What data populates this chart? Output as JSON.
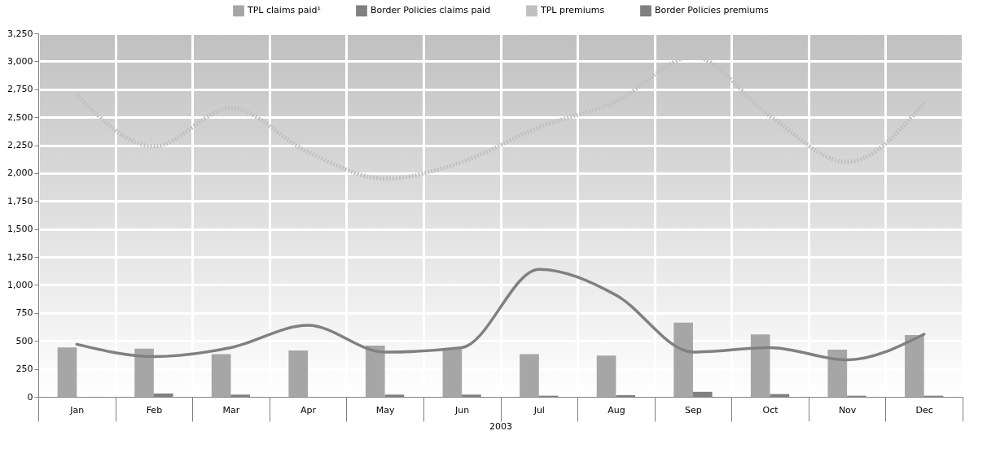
{
  "chart_data": {
    "type": "bar",
    "xlabel": "2003",
    "categories": [
      "Jan",
      "Feb",
      "Mar",
      "Apr",
      "May",
      "Jun",
      "Jul",
      "Aug",
      "Sep",
      "Oct",
      "Nov",
      "Dec"
    ],
    "series": [
      {
        "name": "TPL claims paid¹",
        "type": "bar",
        "color": "#a6a6a6",
        "values": [
          442,
          431,
          381,
          414,
          458,
          428,
          381,
          369,
          664,
          558,
          422,
          553
        ]
      },
      {
        "name": "Border Policies claims paid",
        "type": "bar",
        "color": "#808080",
        "values": [
          0,
          30,
          20,
          0,
          20,
          20,
          10,
          15,
          45,
          25,
          10,
          10
        ]
      },
      {
        "name": "TPL premiums",
        "type": "line",
        "color": "#c0c0c0",
        "line_style": "dotted",
        "values": [
          2700,
          2240,
          2580,
          2190,
          1950,
          2100,
          2410,
          2640,
          3040,
          2510,
          2100,
          2630
        ]
      },
      {
        "name": "Border Policies premiums",
        "type": "line",
        "color": "#808080",
        "line_style": "solid",
        "values": [
          470,
          360,
          440,
          640,
          400,
          440,
          1140,
          910,
          400,
          440,
          330,
          560
        ]
      }
    ],
    "ylim": [
      0,
      3250
    ],
    "yticks": [
      0,
      250,
      500,
      750,
      {
        "value": 1000,
        "label": "1,000"
      },
      {
        "value": 1250,
        "label": "1,250"
      },
      {
        "value": 1500,
        "label": "1,500"
      },
      {
        "value": 1750,
        "label": "1,750"
      },
      {
        "value": 2000,
        "label": "2,000"
      },
      {
        "value": 2250,
        "label": "2,250"
      },
      {
        "value": 2500,
        "label": "2,500"
      },
      {
        "value": 2750,
        "label": "2,750"
      },
      {
        "value": 3000,
        "label": "3,000"
      },
      {
        "value": 3250,
        "label": "3,250"
      }
    ],
    "grid": true,
    "legend": "top"
  }
}
